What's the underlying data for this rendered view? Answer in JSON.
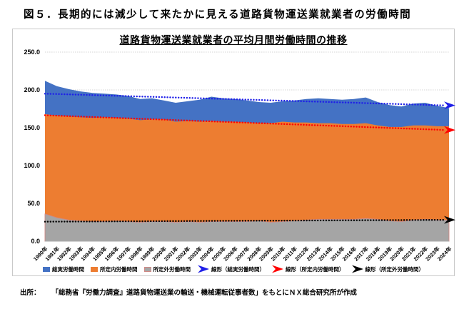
{
  "page": {
    "title": "図５．長期的には減少して来たかに見える道路貨物運送業就業者の労働時間",
    "source_label": "出所：",
    "source_text": "「総務省『労働力調査』道路貨物運送業の輸送・機械運転従事者数」をもとにＮＸ総合研究所が作成"
  },
  "chart_data": {
    "type": "area",
    "title": "道路貨物運送業就業者の平均月間労働時間の推移",
    "categories": [
      "1990年",
      "1991年",
      "1992年",
      "1993年",
      "1994年",
      "1995年",
      "1996年",
      "1997年",
      "1998年",
      "1999年",
      "2000年",
      "2001年",
      "2002年",
      "2003年",
      "2004年",
      "2005年",
      "2006年",
      "2007年",
      "2008年",
      "2009年",
      "2010年",
      "2011年",
      "2012年",
      "2013年",
      "2014年",
      "2015年",
      "2016年",
      "2017年",
      "2018年",
      "2019年",
      "2020年",
      "2021年",
      "2022年",
      "2023年",
      "2024年"
    ],
    "series": [
      {
        "key": "total",
        "name": "総実労働時間",
        "color": "#4472C4",
        "values": [
          212,
          205,
          201,
          198,
          196,
          195,
          194,
          192,
          188,
          189,
          186,
          183,
          185,
          187,
          191,
          189,
          188,
          186,
          184,
          183,
          185,
          186,
          188,
          189,
          188,
          187,
          188,
          190,
          184,
          180,
          178,
          182,
          183,
          179,
          176
        ]
      },
      {
        "key": "scheduled",
        "name": "所定内労働時間",
        "color": "#ED7D31",
        "values": [
          168,
          166,
          165,
          164,
          163,
          164,
          163,
          162,
          160,
          161,
          161,
          158,
          159,
          158,
          159,
          158,
          158,
          157,
          156,
          156,
          158,
          157,
          157,
          156,
          156,
          155,
          155,
          156,
          153,
          151,
          151,
          153,
          153,
          152,
          152
        ]
      },
      {
        "key": "overtime",
        "name": "所定外労働時間",
        "color": "#A5A5A5",
        "stroke": "#D08884",
        "values": [
          36,
          31,
          28,
          27,
          26,
          26,
          27,
          26,
          25,
          26,
          26,
          25,
          26,
          25,
          26,
          26,
          26,
          26,
          27,
          25,
          26,
          27,
          28,
          29,
          29,
          29,
          29,
          30,
          29,
          27,
          26,
          28,
          29,
          28,
          28
        ]
      }
    ],
    "trendlines": [
      {
        "key": "total",
        "name": "線形（総実労働時間）",
        "color": "#1F1FE8",
        "start": 195,
        "end": 179.5
      },
      {
        "key": "scheduled",
        "name": "線形（所定内労働時間）",
        "color": "#FF0000",
        "start": 166.5,
        "end": 147
      },
      {
        "key": "overtime",
        "name": "線形（所定外労働時間）",
        "color": "#000000",
        "start": 25.8,
        "end": 28.2
      }
    ],
    "ylim": [
      0,
      250
    ],
    "ytick_step": 50,
    "ytick_labels": [
      "0.0",
      "50.0",
      "100.0",
      "150.0",
      "200.0",
      "250.0"
    ],
    "xlabel": "",
    "ylabel": "",
    "grid": true,
    "legend_position": "bottom"
  }
}
